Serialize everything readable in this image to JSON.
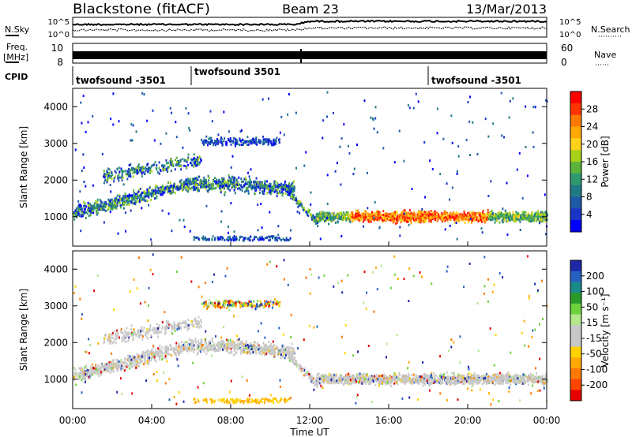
{
  "header": {
    "station": "Blackstone (fitACF)",
    "beam": "Beam 23",
    "date": "13/Mar/2013"
  },
  "panels": {
    "noise": {
      "left_label": "N.Sky",
      "right_label": "N.Search",
      "left_ticks": [
        "10^5",
        "10^0"
      ],
      "right_ticks": [
        "10^5",
        "10^0"
      ]
    },
    "freq": {
      "left_label_1": "Freq.",
      "left_label_2": "[MHz]",
      "right_label": "Nave",
      "left_ticks": [
        "10",
        "8"
      ],
      "right_ticks": [
        "60",
        "0"
      ]
    },
    "cpid": {
      "label": "CPID",
      "segments": [
        {
          "name": "twofsound -3501",
          "start_hour": 0
        },
        {
          "name": "twofsound 3501",
          "start_hour": 6
        },
        {
          "name": "twofsound -3501",
          "start_hour": 18
        }
      ]
    }
  },
  "x_axis": {
    "label": "Time UT",
    "ticks": [
      "00:00",
      "04:00",
      "08:00",
      "12:00",
      "16:00",
      "20:00",
      "00:00"
    ]
  },
  "colorbars": {
    "power": {
      "label": "Power [dB]",
      "ticks": [
        "28",
        "24",
        "20",
        "16",
        "12",
        "8",
        "4"
      ],
      "colors": [
        "#ff0000",
        "#ff3300",
        "#ff7800",
        "#ffa800",
        "#ffd21a",
        "#a8d21a",
        "#5ab43c",
        "#2f9a6e",
        "#1f7a86",
        "#1e5aa8",
        "#1a34c8",
        "#0000ff"
      ]
    },
    "velocity": {
      "label": "Velocity [m s⁻¹]",
      "ticks": [
        "200",
        "100",
        "50",
        "15",
        "-15",
        "-50",
        "-100",
        "-200"
      ],
      "colors": [
        "#1c28a8",
        "#2660c0",
        "#1a8a8a",
        "#2a9a2a",
        "#6cd23c",
        "#b4e68c",
        "#c8c8c8",
        "#c8c8c8",
        "#ffd200",
        "#ffaa00",
        "#ff7800",
        "#ff4600",
        "#e60000"
      ]
    }
  },
  "chart_data": [
    {
      "type": "heatmap",
      "title": "Power",
      "xlabel": "Time UT",
      "ylabel": "Slant Range [km]",
      "xlim": [
        0,
        24
      ],
      "ylim": [
        200,
        4500
      ],
      "y_ticks": [
        "1000",
        "2000",
        "3000",
        "4000"
      ],
      "colorbar_label": "Power [dB]",
      "colorbar_range": [
        0,
        32
      ],
      "features": [
        {
          "name": "morning scatter",
          "x": [
            0.0,
            2.0,
            4.0,
            6.0,
            8.0,
            10.0,
            11.0
          ],
          "y": [
            1100,
            1350,
            1650,
            1900,
            1900,
            1800,
            1750
          ]
        },
        {
          "name": "high-range echoes",
          "x": [
            7.0,
            10.5
          ],
          "y": [
            3000,
            3100
          ]
        },
        {
          "name": "evening scatter",
          "x": [
            14.0,
            24.0
          ],
          "y": [
            1000,
            1000
          ]
        }
      ]
    },
    {
      "type": "heatmap",
      "title": "Velocity",
      "xlabel": "Time UT",
      "ylabel": "Slant Range [km]",
      "xlim": [
        0,
        24
      ],
      "ylim": [
        200,
        4500
      ],
      "y_ticks": [
        "1000",
        "2000",
        "3000",
        "4000"
      ],
      "colorbar_label": "Velocity [m s⁻¹]",
      "colorbar_range": [
        -200,
        200
      ],
      "features": [
        {
          "name": "morning scatter",
          "x": [
            0.0,
            2.0,
            4.0,
            6.0,
            8.0,
            10.0,
            11.0
          ],
          "y": [
            1100,
            1350,
            1650,
            1900,
            1900,
            1800,
            1750
          ]
        },
        {
          "name": "evening scatter",
          "x": [
            14.0,
            24.0
          ],
          "y": [
            1000,
            1000
          ]
        }
      ]
    }
  ]
}
